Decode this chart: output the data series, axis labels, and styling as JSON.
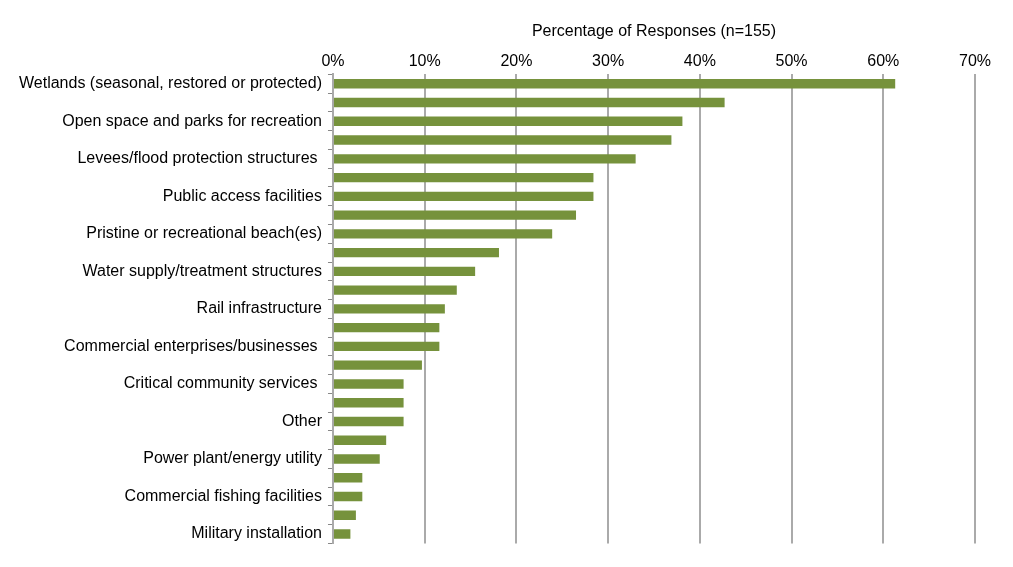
{
  "chart_data": {
    "type": "bar",
    "orientation": "horizontal",
    "xlabel": "Percentage of Responses (n=155)",
    "categories": [
      "Wetlands (seasonal, restored or protected)",
      null,
      "Open space and parks for recreation",
      null,
      "Levees/flood protection structures ",
      null,
      "Public access facilities",
      null,
      "Pristine or recreational beach(es)",
      null,
      "Water supply/treatment structures",
      null,
      "Rail infrastructure",
      null,
      "Commercial enterprises/businesses ",
      null,
      "Critical community services ",
      null,
      "Other",
      null,
      "Power plant/energy utility",
      null,
      "Commercial fishing facilities",
      null,
      "Military installation"
    ],
    "values": [
      61.3,
      42.7,
      38.1,
      36.9,
      33.0,
      28.4,
      28.4,
      26.5,
      23.9,
      18.1,
      15.5,
      13.5,
      12.2,
      11.6,
      11.6,
      9.7,
      7.7,
      7.7,
      7.7,
      5.8,
      5.1,
      3.2,
      3.2,
      2.5,
      1.9
    ],
    "color": "#76923c",
    "xlim": [
      0,
      70
    ],
    "xticks": [
      {
        "value": 0,
        "label": "0%"
      },
      {
        "value": 10,
        "label": "10%"
      },
      {
        "value": 20,
        "label": "20%"
      },
      {
        "value": 30,
        "label": "30%"
      },
      {
        "value": 40,
        "label": "40%"
      },
      {
        "value": 50,
        "label": "50%"
      },
      {
        "value": 60,
        "label": "60%"
      },
      {
        "value": 70,
        "label": "70%"
      }
    ],
    "grid": "x",
    "legend": false
  }
}
